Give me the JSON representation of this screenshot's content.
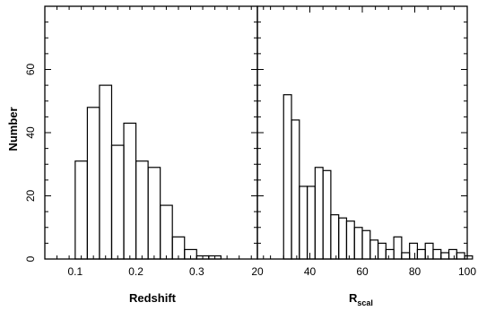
{
  "chart_data": [
    {
      "type": "bar",
      "panel": "left",
      "xlabel": "Redshift",
      "ylabel": "Number",
      "xlim": [
        0.05,
        0.4
      ],
      "ylim": [
        0,
        80
      ],
      "bin_width": 0.02,
      "x_ticks": [
        "0.1",
        "0.2",
        "0.3"
      ],
      "y_ticks": [
        "0",
        "20",
        "40",
        "60"
      ],
      "bins": [
        0.1,
        0.12,
        0.14,
        0.16,
        0.18,
        0.2,
        0.22,
        0.24,
        0.26,
        0.28,
        0.3,
        0.32
      ],
      "values": [
        31,
        48,
        55,
        36,
        43,
        31,
        29,
        17,
        7,
        3,
        1,
        1
      ]
    },
    {
      "type": "bar",
      "panel": "right",
      "xlabel": "R",
      "xlabel_sub": "scal",
      "xlim": [
        20,
        100
      ],
      "ylim": [
        0,
        80
      ],
      "bin_width": 3,
      "x_ticks": [
        "20",
        "40",
        "60",
        "80",
        "100"
      ],
      "bins": [
        30,
        33,
        36,
        39,
        42,
        45,
        48,
        51,
        54,
        57,
        60,
        63,
        66,
        69,
        72,
        75,
        78,
        81,
        84,
        87,
        90,
        93,
        96,
        99
      ],
      "values": [
        52,
        44,
        23,
        23,
        29,
        28,
        14,
        13,
        12,
        10,
        9,
        6,
        5,
        3,
        7,
        2,
        5,
        3,
        5,
        3,
        2,
        3,
        2,
        1
      ]
    }
  ]
}
